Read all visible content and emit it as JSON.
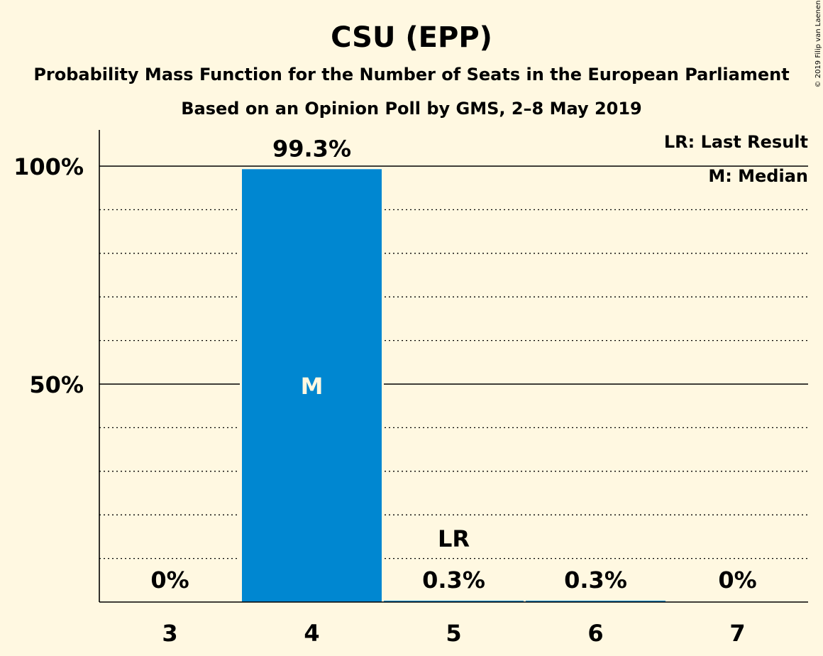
{
  "chart_data": {
    "type": "bar",
    "title": "CSU (EPP)",
    "subtitle": "Probability Mass Function for the Number of Seats in the European Parliament",
    "subtitle2": "Based on an Opinion Poll by GMS, 2–8 May 2019",
    "categories": [
      "3",
      "4",
      "5",
      "6",
      "7"
    ],
    "values": [
      0,
      99.3,
      0.3,
      0.3,
      0
    ],
    "value_labels": [
      "0%",
      "99.3%",
      "0.3%",
      "0.3%",
      "0%"
    ],
    "ylim": [
      0,
      100
    ],
    "y_ticks": [
      {
        "value": 50,
        "label": "50%"
      },
      {
        "value": 100,
        "label": "100%"
      }
    ],
    "y_minor_step": 10,
    "median_index": 1,
    "median_label": "M",
    "last_result_index": 2,
    "last_result_label": "LR",
    "legend": [
      "LR: Last Result",
      "M: Median"
    ],
    "copyright": "© 2019 Filip van Laenen",
    "bar_color": "#0087d1",
    "background": "#fff8e1"
  }
}
